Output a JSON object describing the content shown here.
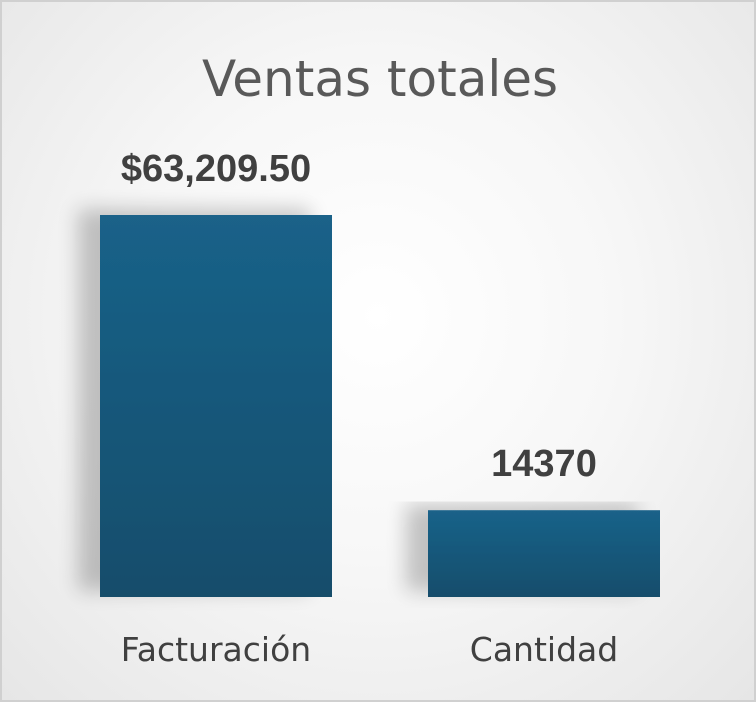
{
  "chart_data": {
    "type": "bar",
    "title": "Ventas totales",
    "categories": [
      "Facturación",
      "Cantidad"
    ],
    "values": [
      63209.5,
      14370
    ],
    "data_labels": [
      "$63,209.50",
      "14370"
    ],
    "xlabel": "",
    "ylabel": "",
    "ylim": [
      0,
      63209.5
    ],
    "grid": false,
    "legend": "none",
    "colors": {
      "bar_top": "#1a6289",
      "bar_bottom": "#134d6b",
      "title": "#595959",
      "labels": "#404040"
    }
  }
}
